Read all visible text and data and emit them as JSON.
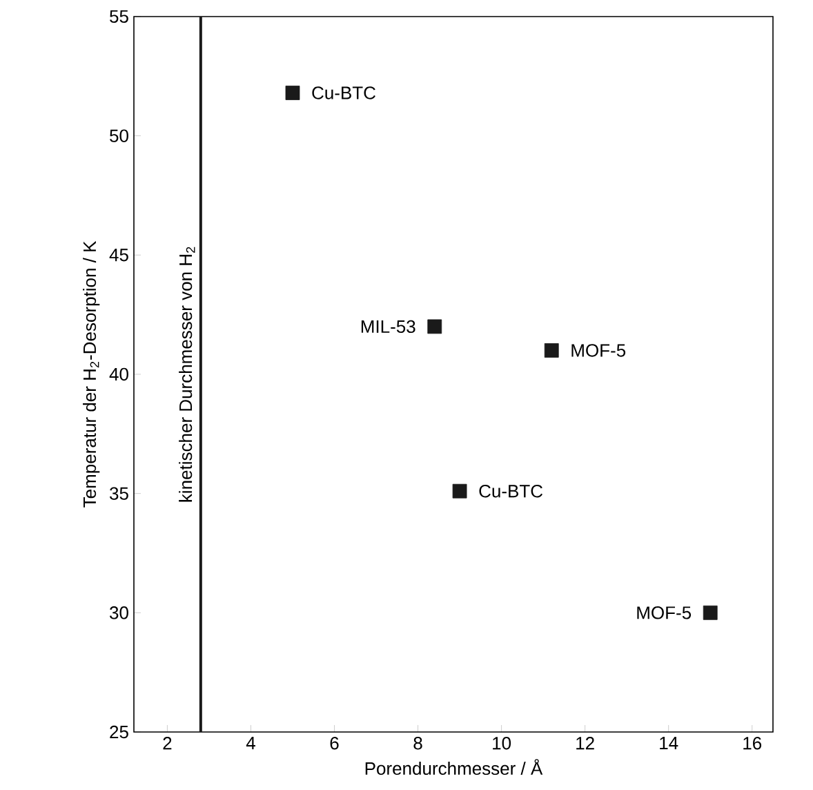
{
  "chart_data": {
    "type": "scatter",
    "xlabel": "Porendurchmesser / Å",
    "ylabel": "Temperatur der H$_{2}$-Desorption / K",
    "series": [
      {
        "color": "#1a1a1a",
        "x": [
          5,
          8.4,
          11.2,
          9,
          15
        ],
        "values": [
          51.8,
          42,
          41,
          35.1,
          30
        ]
      }
    ],
    "marker": "square",
    "grid": false,
    "xlim": [
      1.2,
      16.5
    ],
    "ylim": [
      25,
      55
    ],
    "xticks": [
      2,
      4,
      6,
      8,
      10,
      12,
      14,
      16
    ],
    "yticks": [
      25,
      30,
      35,
      40,
      45,
      50,
      55
    ],
    "ref_lines": [
      {
        "axis": "x",
        "value": 2.8,
        "label": "kinetischer Durchmesser von H$_{2}$",
        "color": "#1a1a1a"
      }
    ],
    "annotations": [
      {
        "text": "Cu-BTC",
        "x": 5,
        "y": 51.8
      },
      {
        "text": "MIL-53",
        "x": 8.4,
        "y": 42
      },
      {
        "text": "MOF-5",
        "x": 11.2,
        "y": 41
      },
      {
        "text": "Cu-BTC",
        "x": 9,
        "y": 35.1
      },
      {
        "text": "MOF-5",
        "x": 15,
        "y": 30
      }
    ]
  }
}
